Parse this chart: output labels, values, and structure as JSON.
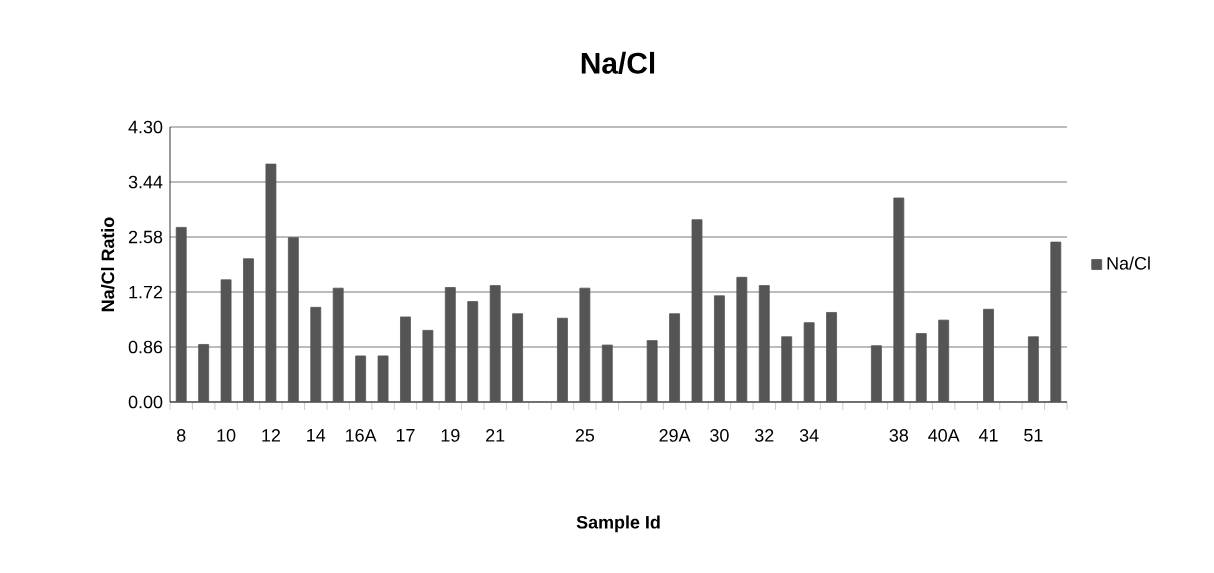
{
  "chart_data": {
    "type": "bar",
    "title": "Na/Cl",
    "xlabel": "Sample Id",
    "ylabel": "Na/Cl Ratio",
    "categories": [
      "8",
      null,
      "10",
      null,
      "12",
      null,
      "14",
      null,
      "16A",
      null,
      "17",
      null,
      "19",
      null,
      "21",
      null,
      null,
      null,
      "25",
      null,
      null,
      null,
      "29A",
      null,
      "30",
      null,
      "32",
      null,
      "34",
      null,
      null,
      null,
      "38",
      null,
      "40A",
      null,
      "41",
      null,
      "51",
      null
    ],
    "series": [
      {
        "name": "Na/Cl",
        "color": "#555555",
        "values": [
          2.73,
          0.9,
          1.91,
          2.24,
          3.72,
          2.57,
          1.48,
          1.78,
          0.72,
          0.72,
          1.33,
          1.12,
          1.79,
          1.57,
          1.82,
          1.38,
          null,
          1.31,
          1.78,
          0.89,
          null,
          0.96,
          1.38,
          2.85,
          1.66,
          1.95,
          1.82,
          1.02,
          1.24,
          1.4,
          null,
          0.88,
          3.19,
          1.07,
          1.28,
          null,
          1.45,
          null,
          1.02,
          2.5
        ]
      }
    ],
    "ylim": [
      0,
      4.3
    ],
    "yticks": [
      {
        "value": 0,
        "label": "0.00"
      },
      0.86,
      1.72,
      2.58,
      3.44,
      {
        "value": 4.3,
        "label": "4.30"
      }
    ],
    "grid": "y",
    "legend": "right"
  }
}
